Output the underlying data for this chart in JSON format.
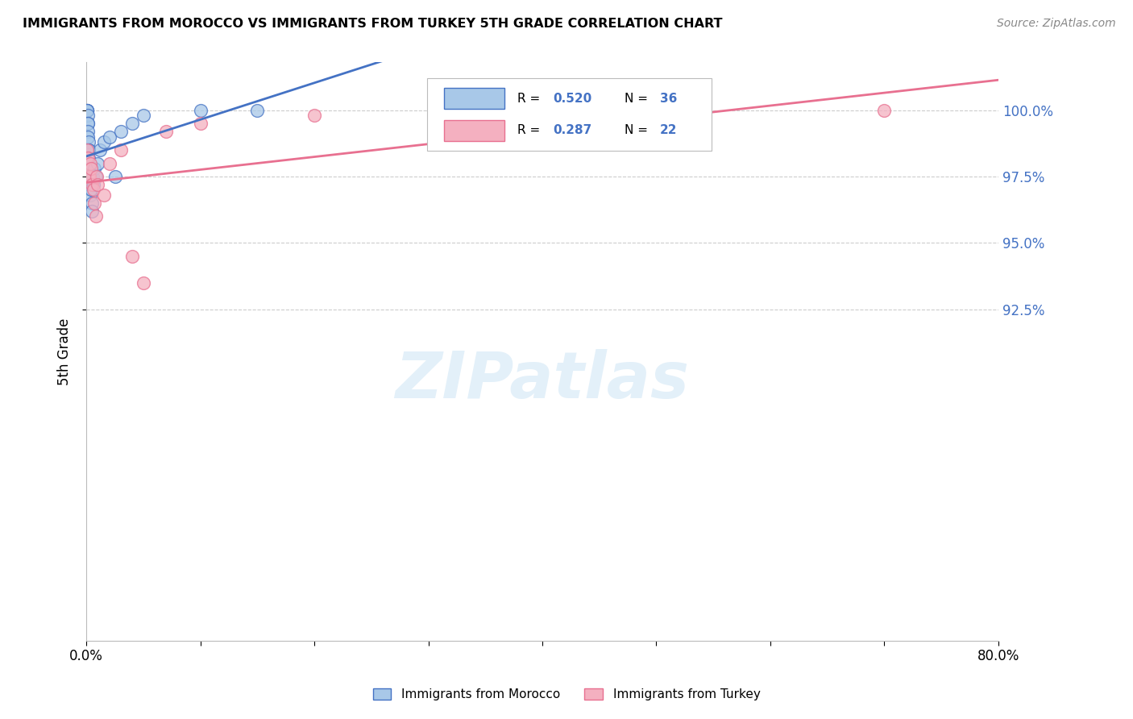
{
  "title": "IMMIGRANTS FROM MOROCCO VS IMMIGRANTS FROM TURKEY 5TH GRADE CORRELATION CHART",
  "source": "Source: ZipAtlas.com",
  "ylabel": "5th Grade",
  "xlim": [
    0.0,
    80.0
  ],
  "ylim": [
    80.0,
    101.8
  ],
  "ytick_positions": [
    92.5,
    95.0,
    97.5,
    100.0
  ],
  "ytick_labels": [
    "92.5%",
    "95.0%",
    "97.5%",
    "100.0%"
  ],
  "xtick_positions": [
    0.0,
    80.0
  ],
  "xtick_labels": [
    "0.0%",
    "80.0%"
  ],
  "morocco_color": "#a8c8e8",
  "turkey_color": "#f4b0c0",
  "morocco_R": 0.52,
  "morocco_N": 36,
  "turkey_R": 0.287,
  "turkey_N": 22,
  "legend_label_morocco": "Immigrants from Morocco",
  "legend_label_turkey": "Immigrants from Turkey",
  "watermark": "ZIPatlas",
  "morocco_x": [
    0.05,
    0.05,
    0.05,
    0.08,
    0.1,
    0.1,
    0.12,
    0.15,
    0.15,
    0.18,
    0.2,
    0.2,
    0.22,
    0.25,
    0.25,
    0.3,
    0.3,
    0.3,
    0.35,
    0.4,
    0.45,
    0.5,
    0.55,
    0.6,
    0.7,
    0.8,
    1.0,
    1.2,
    1.5,
    2.0,
    2.5,
    3.0,
    4.0,
    5.0,
    10.0,
    15.0
  ],
  "morocco_y": [
    100.0,
    100.0,
    100.0,
    100.0,
    99.8,
    99.5,
    99.5,
    99.2,
    99.0,
    98.8,
    98.5,
    98.5,
    98.2,
    97.8,
    97.5,
    97.5,
    97.2,
    97.0,
    96.8,
    97.0,
    96.5,
    96.2,
    97.5,
    97.2,
    97.8,
    97.5,
    98.0,
    98.5,
    98.8,
    99.0,
    97.5,
    99.2,
    99.5,
    99.8,
    100.0,
    100.0
  ],
  "turkey_x": [
    0.08,
    0.15,
    0.2,
    0.25,
    0.3,
    0.4,
    0.5,
    0.6,
    0.7,
    0.8,
    0.9,
    1.0,
    1.5,
    2.0,
    3.0,
    4.0,
    5.0,
    7.0,
    10.0,
    20.0,
    50.0,
    70.0
  ],
  "turkey_y": [
    98.5,
    98.2,
    97.5,
    97.5,
    98.0,
    97.8,
    97.2,
    97.0,
    96.5,
    96.0,
    97.5,
    97.2,
    96.8,
    98.0,
    98.5,
    94.5,
    93.5,
    99.2,
    99.5,
    99.8,
    100.0,
    100.0
  ],
  "line_color_morocco": "#4472c4",
  "line_color_turkey": "#e87090",
  "grid_color": "#cccccc",
  "right_label_color": "#4472c4",
  "value_color": "#4472c4"
}
